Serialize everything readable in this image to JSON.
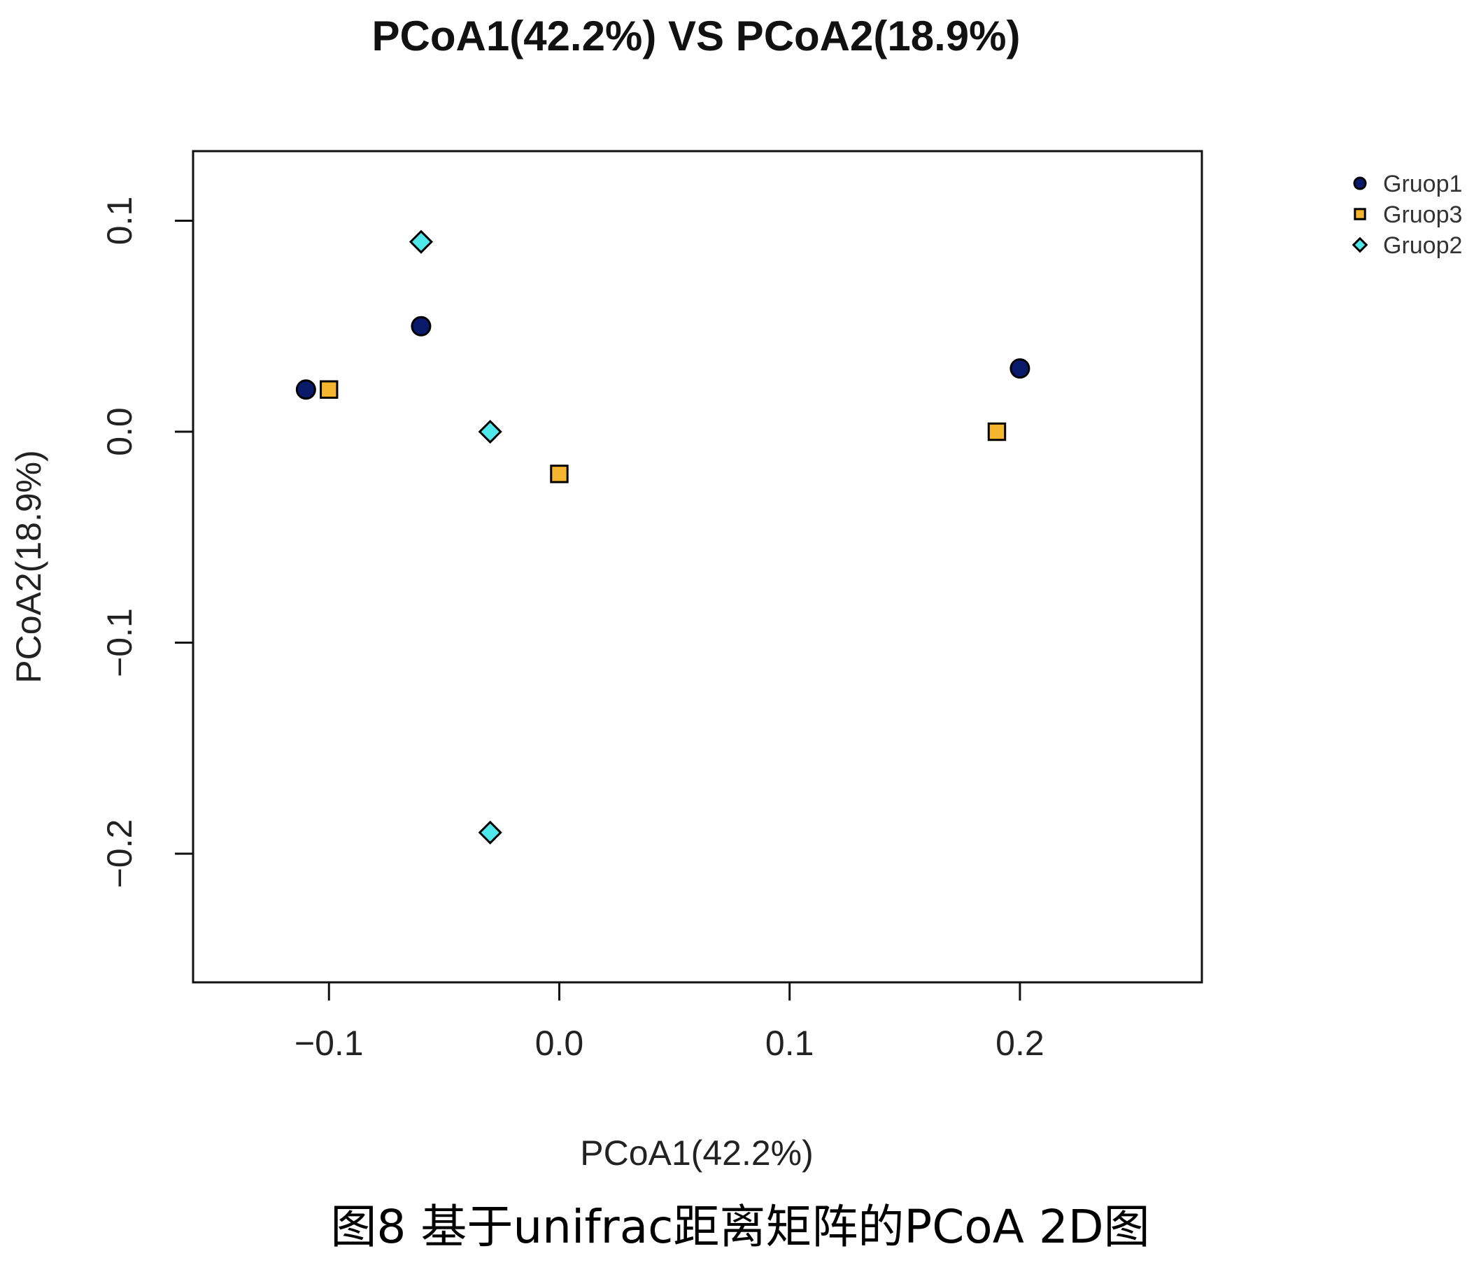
{
  "chart_data": {
    "type": "scatter",
    "title": "PCoA1(42.2%) VS PCoA2(18.9%)",
    "xlabel": "PCoA1(42.2%)",
    "ylabel": "PCoA2(18.9%)",
    "xlim": [
      -0.159,
      0.279
    ],
    "ylim": [
      -0.261,
      0.133
    ],
    "xticks": [
      {
        "value": -0.1,
        "label": "−0.1"
      },
      {
        "value": 0.0,
        "label": "0.0"
      },
      {
        "value": 0.1,
        "label": "0.1"
      },
      {
        "value": 0.2,
        "label": "0.2"
      }
    ],
    "yticks": [
      {
        "value": 0.1,
        "label": "0.1"
      },
      {
        "value": 0.0,
        "label": "0.0"
      },
      {
        "value": -0.1,
        "label": "−0.1"
      },
      {
        "value": -0.2,
        "label": "−0.2"
      }
    ],
    "grid": false,
    "legend_position": "top-right outside",
    "series": [
      {
        "name": "Gruop1",
        "marker": "circle",
        "color": "#0a1a6b",
        "points": [
          {
            "x": -0.11,
            "y": 0.02
          },
          {
            "x": -0.06,
            "y": 0.05
          },
          {
            "x": 0.2,
            "y": 0.03
          }
        ]
      },
      {
        "name": "Gruop3",
        "marker": "square",
        "color": "#f5b52e",
        "points": [
          {
            "x": -0.1,
            "y": 0.02
          },
          {
            "x": 0.0,
            "y": -0.02
          },
          {
            "x": 0.19,
            "y": 0.0
          }
        ]
      },
      {
        "name": "Gruop2",
        "marker": "diamond",
        "color": "#4fe8ea",
        "points": [
          {
            "x": -0.06,
            "y": 0.09
          },
          {
            "x": -0.03,
            "y": 0.0
          },
          {
            "x": -0.03,
            "y": -0.19
          }
        ]
      }
    ]
  },
  "caption": "图8 基于unifrac距离矩阵的PCoA 2D图"
}
